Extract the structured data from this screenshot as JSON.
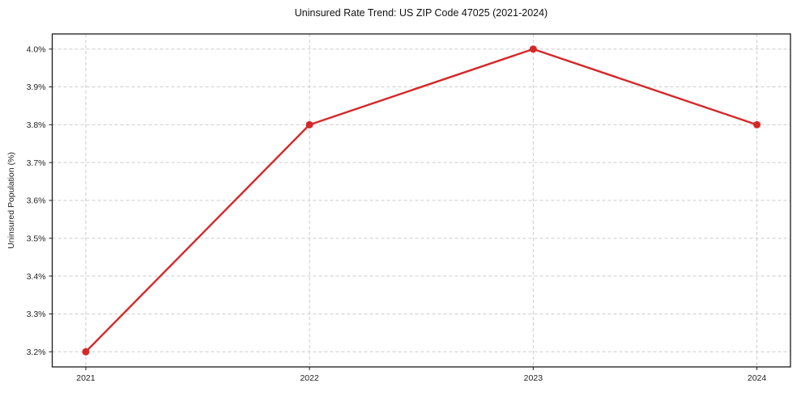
{
  "chart_data": {
    "type": "line",
    "title": "Uninsured Rate Trend: US ZIP Code 47025 (2021-2024)",
    "xlabel": "",
    "ylabel": "Uninsured Population (%)",
    "x": [
      2021,
      2022,
      2023,
      2024
    ],
    "values": [
      3.2,
      3.8,
      4.0,
      3.8
    ],
    "xtick_labels": [
      "2021",
      "2022",
      "2023",
      "2024"
    ],
    "ytick_values": [
      3.2,
      3.3,
      3.4,
      3.5,
      3.6,
      3.7,
      3.8,
      3.9,
      4.0
    ],
    "ytick_labels": [
      "3.2%",
      "3.3%",
      "3.4%",
      "3.5%",
      "3.6%",
      "3.7%",
      "3.8%",
      "3.9%",
      "4.0%"
    ],
    "xlim": [
      2020.85,
      2024.15
    ],
    "ylim": [
      3.16,
      4.04
    ],
    "grid": true,
    "grid_style": "dashed",
    "legend": "none",
    "line_color": "#d62728",
    "marker": "circle",
    "grid_color": "#cccccc",
    "axis_color": "#1a1a1a",
    "text_color": "#1f1f1f",
    "background_color": "#ffffff"
  }
}
